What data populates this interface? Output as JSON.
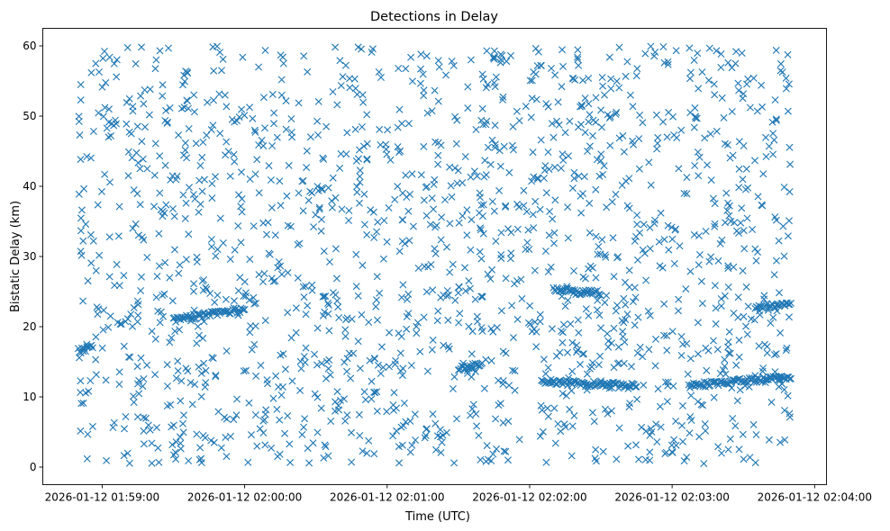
{
  "chart_data": {
    "type": "scatter",
    "title": "Detections in Delay",
    "xlabel": "Time (UTC)",
    "ylabel": "Bistatic Delay (km)",
    "marker": "x",
    "color": "#1f77b4",
    "xlim": [
      "2026-01-12 01:58:35",
      "2026-01-12 02:04:05"
    ],
    "ylim": [
      -2.5,
      62.5
    ],
    "x_ticks": [
      "2026-01-12 01:59:00",
      "2026-01-12 02:00:00",
      "2026-01-12 02:01:00",
      "2026-01-12 02:02:00",
      "2026-01-12 02:03:00",
      "2026-01-12 02:04:00"
    ],
    "y_ticks": [
      0,
      10,
      20,
      30,
      40,
      50,
      60
    ],
    "grid": false,
    "time_range": [
      "2026-01-12 01:58:50",
      "2026-01-12 02:03:50"
    ],
    "y_range": [
      0.5,
      60
    ],
    "num_points": 2000,
    "tracks": [
      {
        "start": "2026-01-12 01:58:50",
        "end": "2026-01-12 01:58:56",
        "y_start": 16.6,
        "y_end": 17.0
      },
      {
        "start": "2026-01-12 01:59:30",
        "end": "2026-01-12 02:00:00",
        "y_start": 21.0,
        "y_end": 22.5
      },
      {
        "start": "2026-01-12 02:01:30",
        "end": "2026-01-12 02:01:40",
        "y_start": 14.0,
        "y_end": 14.6
      },
      {
        "start": "2026-01-12 02:02:05",
        "end": "2026-01-12 02:02:45",
        "y_start": 12.2,
        "y_end": 11.5
      },
      {
        "start": "2026-01-12 02:03:07",
        "end": "2026-01-12 02:03:50",
        "y_start": 11.6,
        "y_end": 12.9
      },
      {
        "start": "2026-01-12 02:02:10",
        "end": "2026-01-12 02:02:30",
        "y_start": 25.2,
        "y_end": 24.8
      },
      {
        "start": "2026-01-12 02:03:35",
        "end": "2026-01-12 02:03:50",
        "y_start": 22.9,
        "y_end": 23.2
      }
    ]
  }
}
